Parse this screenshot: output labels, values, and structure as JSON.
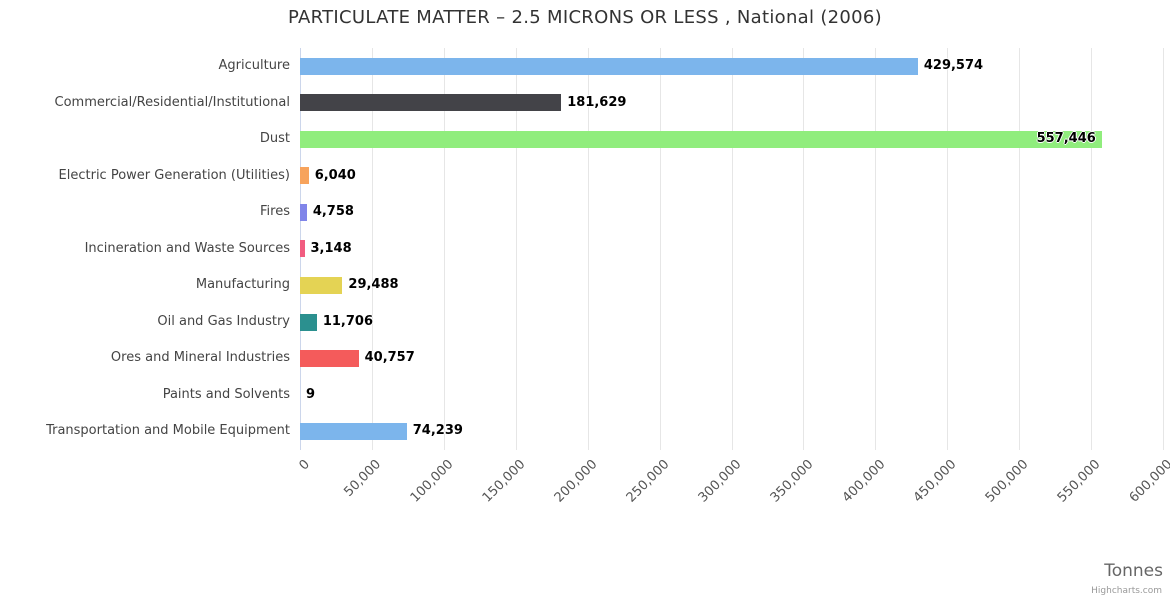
{
  "credit": "Highcharts.com",
  "chart_data": {
    "type": "bar",
    "orientation": "horizontal",
    "title": "PARTICULATE MATTER – 2.5 MICRONS OR LESS , National (2006)",
    "xlabel": "Tonnes",
    "ylabel": "",
    "categories": [
      "Agriculture",
      "Commercial/Residential/Institutional",
      "Dust",
      "Electric Power Generation (Utilities)",
      "Fires",
      "Incineration and Waste Sources",
      "Manufacturing",
      "Oil and Gas Industry",
      "Ores and Mineral Industries",
      "Paints and Solvents",
      "Transportation and Mobile Equipment"
    ],
    "values": [
      429574,
      181629,
      557446,
      6040,
      4758,
      3148,
      29488,
      11706,
      40757,
      9,
      74239
    ],
    "value_labels": [
      "429,574",
      "181,629",
      "557,446",
      "6,040",
      "4,758",
      "3,148",
      "29,488",
      "11,706",
      "40,757",
      "9",
      "74,239"
    ],
    "colors": [
      "#7cb5ec",
      "#434348",
      "#90ed7d",
      "#f7a35c",
      "#8085e9",
      "#f15c80",
      "#e4d354",
      "#2b908f",
      "#f45b5b",
      "#91e8e1",
      "#7cb5ec"
    ],
    "xlim": [
      0,
      600000
    ],
    "x_ticks": [
      0,
      50000,
      100000,
      150000,
      200000,
      250000,
      300000,
      350000,
      400000,
      450000,
      500000,
      550000,
      600000
    ],
    "x_tick_labels": [
      "0",
      "50,000",
      "100,000",
      "150,000",
      "200,000",
      "250,000",
      "300,000",
      "350,000",
      "400,000",
      "450,000",
      "500,000",
      "550,000",
      "600,000"
    ],
    "grid": true,
    "legend": "none"
  }
}
